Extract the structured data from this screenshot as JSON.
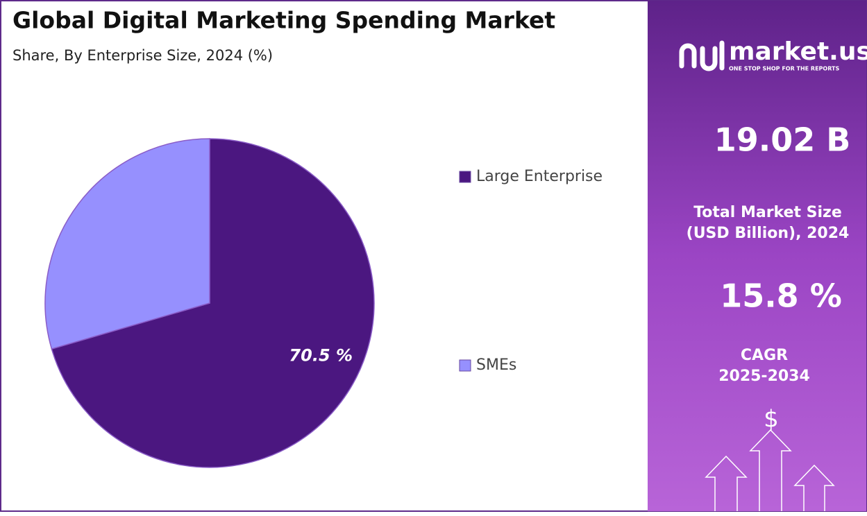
{
  "chart_data": {
    "type": "pie",
    "title": "Global Digital Marketing Spending Market",
    "subtitle": "Share, By Enterprise Size, 2024 (%)",
    "categories": [
      "Large Enterprise",
      "SMEs"
    ],
    "values": [
      70.5,
      29.5
    ],
    "value_labels": [
      "70.5 %",
      null
    ],
    "colors": [
      "#4b1780",
      "#9690fe"
    ]
  },
  "panel": {
    "logo": "market.us",
    "tagline": "ONE STOP SHOP FOR THE REPORTS",
    "market_size": "19.02 B",
    "market_size_label": [
      "Total Market Size",
      "(USD Billion), 2024"
    ],
    "cagr": "15.8 %",
    "cagr_label": [
      "CAGR",
      "2025-2034"
    ]
  }
}
